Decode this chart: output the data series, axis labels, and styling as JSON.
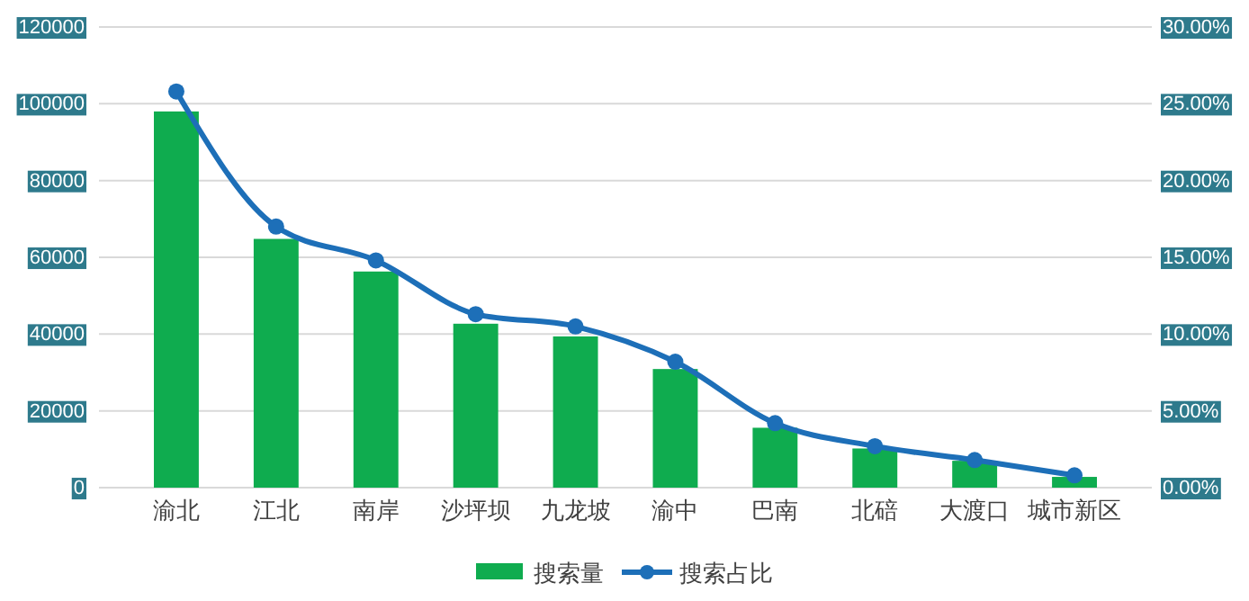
{
  "chart_data": {
    "type": "bar",
    "categories": [
      "渝北",
      "江北",
      "南岸",
      "沙坪坝",
      "九龙坡",
      "渝中",
      "巴南",
      "北碚",
      "大渡口",
      "城市新区"
    ],
    "series": [
      {
        "name": "搜索量",
        "color": "#0fac4f",
        "values": [
          98000,
          64800,
          56300,
          42700,
          39400,
          30900,
          15600,
          10200,
          7000,
          2800
        ]
      },
      {
        "name": "搜索占比",
        "type": "line",
        "axis": "y2",
        "color": "#1d6fb8",
        "marker": "circle",
        "values": [
          25.8,
          17.0,
          14.8,
          11.3,
          10.5,
          8.2,
          4.2,
          2.7,
          1.8,
          0.8
        ]
      }
    ],
    "ylim": [
      0,
      120000
    ],
    "yticks": [
      0,
      20000,
      40000,
      60000,
      80000,
      100000,
      120000
    ],
    "y2lim": [
      0,
      30
    ],
    "y2ticks": [
      {
        "value": 0,
        "label": "0.00%"
      },
      {
        "value": 5,
        "label": "5.00%"
      },
      {
        "value": 10,
        "label": "10.00%"
      },
      {
        "value": 15,
        "label": "15.00%"
      },
      {
        "value": 20,
        "label": "20.00%"
      },
      {
        "value": 25,
        "label": "25.00%"
      },
      {
        "value": 30,
        "label": "30.00%"
      }
    ],
    "grid": "y",
    "legend": "bottom"
  }
}
